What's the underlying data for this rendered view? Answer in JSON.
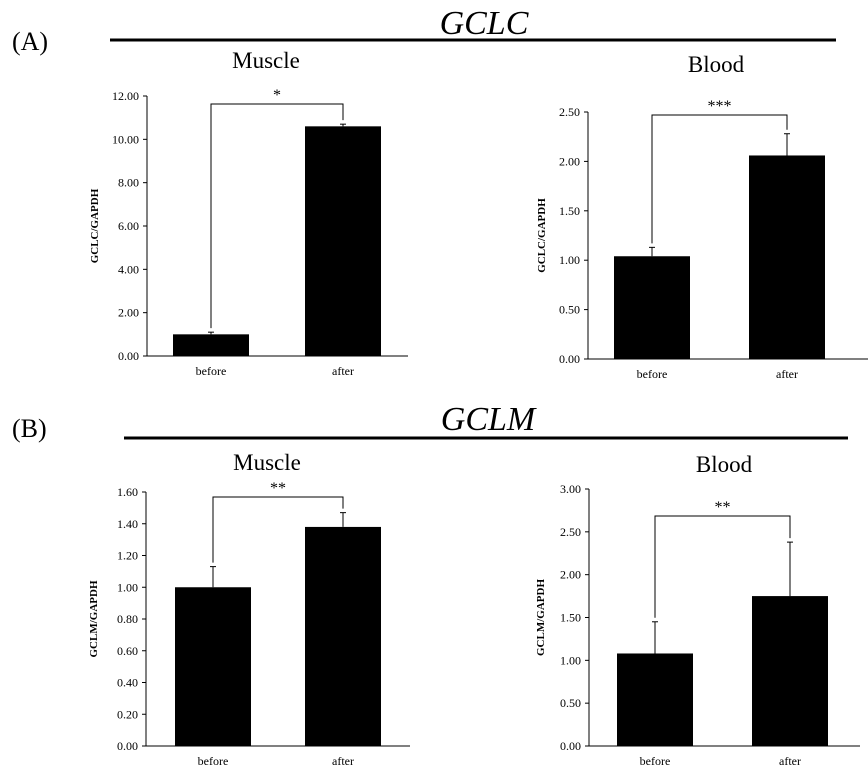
{
  "panels": [
    {
      "label": "(A)",
      "gene": "GCLC"
    },
    {
      "label": "(B)",
      "gene": "GCLM"
    }
  ],
  "chart_data": [
    {
      "type": "bar",
      "title": "Muscle",
      "ylabel": "GCLC/GAPDH",
      "categories": [
        "before",
        "after"
      ],
      "values": [
        1.0,
        10.6
      ],
      "errors": [
        0.1,
        0.1
      ],
      "ylim": [
        0,
        12
      ],
      "yticks": [
        "0.00",
        "2.00",
        "4.00",
        "6.00",
        "8.00",
        "10.00",
        "12.00"
      ],
      "significance": "*",
      "bar_color": "#000000"
    },
    {
      "type": "bar",
      "title": "Blood",
      "ylabel": "GCLC/GAPDH",
      "categories": [
        "before",
        "after"
      ],
      "values": [
        1.04,
        2.06
      ],
      "errors": [
        0.09,
        0.22
      ],
      "ylim": [
        0,
        2.5
      ],
      "yticks": [
        "0.00",
        "0.50",
        "1.00",
        "1.50",
        "2.00",
        "2.50"
      ],
      "significance": "***",
      "bar_color": "#000000"
    },
    {
      "type": "bar",
      "title": "Muscle",
      "ylabel": "GCLM/GAPDH",
      "categories": [
        "before",
        "after"
      ],
      "values": [
        1.0,
        1.38
      ],
      "errors": [
        0.13,
        0.09
      ],
      "ylim": [
        0,
        1.6
      ],
      "yticks": [
        "0.00",
        "0.20",
        "0.40",
        "0.60",
        "0.80",
        "1.00",
        "1.20",
        "1.40",
        "1.60"
      ],
      "significance": "**",
      "bar_color": "#000000"
    },
    {
      "type": "bar",
      "title": "Blood",
      "ylabel": "GCLM/GAPDH",
      "categories": [
        "before",
        "after"
      ],
      "values": [
        1.08,
        1.75
      ],
      "errors": [
        0.37,
        0.63
      ],
      "ylim": [
        0,
        3.0
      ],
      "yticks": [
        "0.00",
        "0.50",
        "1.00",
        "1.50",
        "2.00",
        "2.50",
        "3.00"
      ],
      "significance": "**",
      "bar_color": "#000000"
    }
  ]
}
